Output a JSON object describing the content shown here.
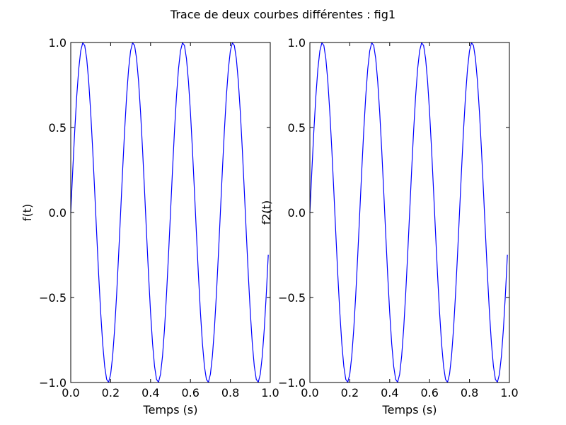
{
  "figure_title": "Trace de deux courbes différentes : fig1",
  "chart_data": [
    {
      "type": "line",
      "title": "",
      "xlabel": "Temps (s)",
      "ylabel": "f(t)",
      "xlim": [
        0.0,
        1.0
      ],
      "ylim": [
        -1.0,
        1.0
      ],
      "grid": false,
      "xticks": [
        "0.0",
        "0.2",
        "0.4",
        "0.6",
        "0.8",
        "1.0"
      ],
      "yticks": [
        "−1.0",
        "−0.5",
        "0.0",
        "0.5",
        "1.0"
      ],
      "series": [
        {
          "function": "sin(2*pi*4*t)",
          "t_start": 0.0,
          "t_end": 0.99,
          "t_step": 0.01,
          "color": "#0000ff"
        }
      ]
    },
    {
      "type": "line",
      "title": "",
      "xlabel": "Temps (s)",
      "ylabel": "f2(t)",
      "xlim": [
        0.0,
        1.0
      ],
      "ylim": [
        -1.0,
        1.0
      ],
      "grid": false,
      "xticks": [
        "0.0",
        "0.2",
        "0.4",
        "0.6",
        "0.8",
        "1.0"
      ],
      "yticks": [
        "−1.0",
        "−0.5",
        "0.0",
        "0.5",
        "1.0"
      ],
      "series": [
        {
          "function": "sin(2*pi*4*t)",
          "t_start": 0.0,
          "t_end": 0.99,
          "t_step": 0.01,
          "color": "#0000ff"
        }
      ]
    }
  ]
}
